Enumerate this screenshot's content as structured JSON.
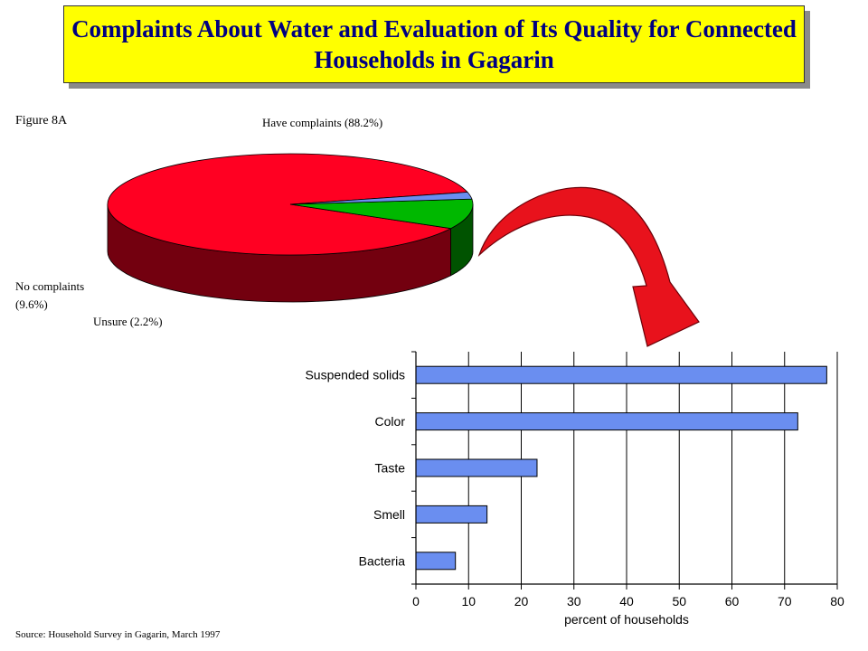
{
  "title": "Complaints About Water and Evaluation of Its Quality for Connected Households in Gagarin",
  "figure_label": "Figure 8A",
  "source": "Source: Household Survey in Gagarin, March 1997",
  "colors": {
    "have_complaints": "#ff0022",
    "no_complaints": "#00b800",
    "unsure": "#6a8ef0",
    "bar_fill": "#6a8ef0",
    "arrow": "#e8121c",
    "title_bg": "#ffff00",
    "title_text": "#000080"
  },
  "chart_data": [
    {
      "type": "pie",
      "style": "3d",
      "slices": [
        {
          "label": "Have complaints (88.2%)",
          "value": 88.2,
          "color": "#ff0022"
        },
        {
          "label": "No complaints (9.6%)",
          "value": 9.6,
          "color": "#00b800"
        },
        {
          "label": "Unsure (2.2%)",
          "value": 2.2,
          "color": "#6a8ef0"
        }
      ]
    },
    {
      "type": "bar",
      "orientation": "horizontal",
      "categories": [
        "Suspended solids",
        "Color",
        "Taste",
        "Smell",
        "Bacteria"
      ],
      "values": [
        78,
        72.5,
        23,
        13.5,
        7.5
      ],
      "xlabel": "percent of households",
      "xlim": [
        0,
        80
      ],
      "xticks": [
        "0",
        "10",
        "20",
        "30",
        "40",
        "50",
        "60",
        "70",
        "80"
      ],
      "grid": true
    }
  ]
}
